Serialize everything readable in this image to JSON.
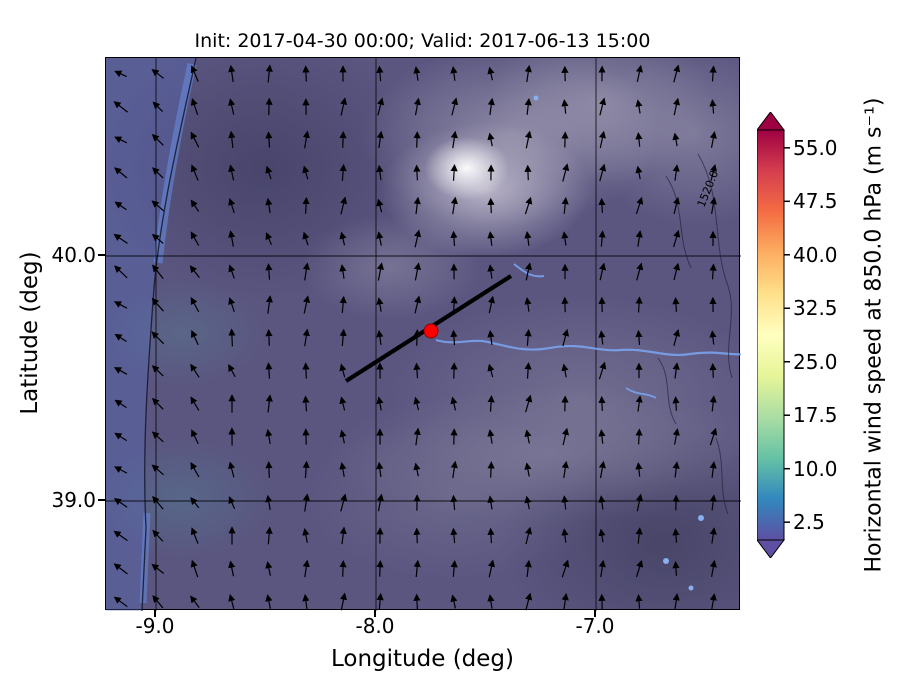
{
  "figure": {
    "title": "Init: 2017-04-30 00:00; Valid: 2017-06-13 15:00",
    "xlabel": "Longitude (deg)",
    "ylabel": "Latitude (deg)"
  },
  "axes": {
    "x_tick_labels": [
      "-9.0",
      "-8.0",
      "-7.0"
    ],
    "y_tick_labels": [
      "40.0",
      "39.0"
    ]
  },
  "colorbar": {
    "label": "Horizontal wind speed at 850.0 hPa (m s⁻¹)",
    "tick_labels": [
      "2.5",
      "10.0",
      "17.5",
      "25.0",
      "32.5",
      "40.0",
      "47.5",
      "55.0"
    ],
    "tick_values": [
      2.5,
      10.0,
      17.5,
      25.0,
      32.5,
      40.0,
      47.5,
      55.0
    ],
    "value_range": [
      0,
      57.5
    ],
    "extend": "both",
    "colors_low_to_high": [
      "#5e4fa2",
      "#3288bd",
      "#66c2a5",
      "#abdda4",
      "#e6f598",
      "#ffffbf",
      "#fee08b",
      "#fdae61",
      "#f46d43",
      "#d53e4f",
      "#9e0142"
    ]
  },
  "plot": {
    "contour_label": "1520.0",
    "marker_color": "#ff0000",
    "cross_section_line_color": "#000000",
    "arrow_color": "#000000"
  },
  "chart_data": {
    "type": "heatmap",
    "subtype": "filled-contour map with wind quiver overlay",
    "title": "Init: 2017-04-30 00:00; Valid: 2017-06-13 15:00",
    "xlabel": "Longitude (deg)",
    "ylabel": "Latitude (deg)",
    "xlim": [
      -9.3,
      -6.35
    ],
    "ylim": [
      38.55,
      40.8
    ],
    "x_ticks": [
      -9.0,
      -8.0,
      -7.0
    ],
    "y_ticks": [
      40.0,
      39.0
    ],
    "grid": true,
    "colorbar": {
      "label": "Horizontal wind speed at 850.0 hPa (m s⁻¹)",
      "ticks": [
        2.5,
        10.0,
        17.5,
        25.0,
        32.5,
        40.0,
        47.5,
        55.0
      ],
      "range": [
        0,
        57.5
      ],
      "colormap": "Spectral_r (purple-blue low to yellow-orange-red high)",
      "extend": "both",
      "position": "right"
    },
    "field_summary": "Wind speed over central Portugal/Iberia is low (roughly 2.5-10 m/s): mostly dark purple shading over land with blue patches (~7.5-10 m/s) along the Atlantic coast on the west edge; grayscale terrain shading shows bright high-terrain patch near lon -7.6, lat 40.3 with a 1520.0 m terrain contour label nearby",
    "quiver": {
      "description": "Black wind arrows on a regular ~17x17 grid; predominantly northward over land, veering to west/northwest near the western (Atlantic) edge, slight north-northeastward tilt in the east",
      "approx_grid_cols": 17,
      "approx_grid_rows": 17
    },
    "red_marker": {
      "lon": -7.75,
      "lat": 39.7
    },
    "cross_section_line": {
      "from_lonlat": [
        -8.15,
        39.48
      ],
      "to_lonlat": [
        -7.4,
        40.06
      ]
    },
    "terrain_contour_label_m": 1520.0
  }
}
